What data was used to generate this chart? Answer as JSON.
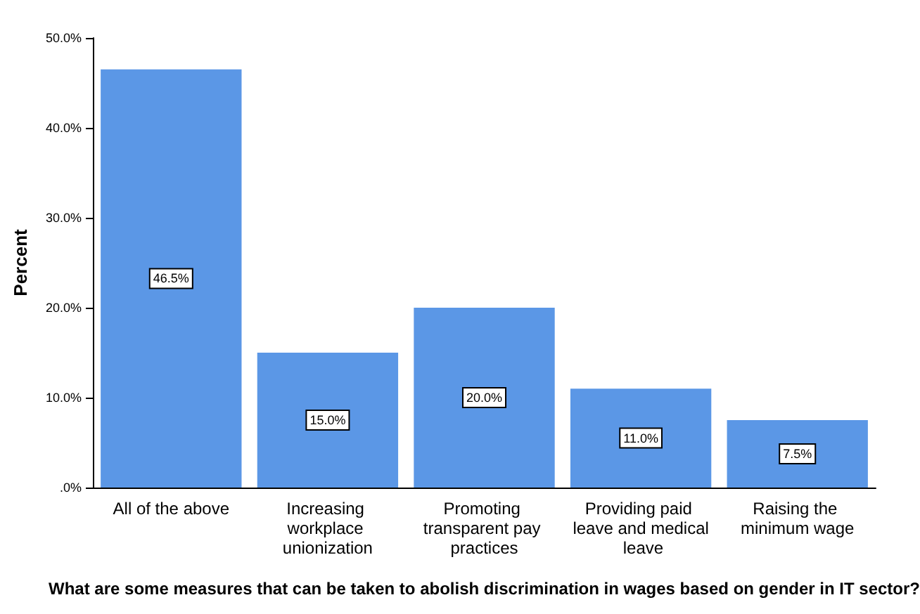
{
  "chart_data": {
    "type": "bar",
    "xlabel": "What are some measures that can be taken to abolish discrimination in wages based on gender in IT sector?",
    "ylabel": "Percent",
    "categories": [
      "All of the above",
      "Increasing workplace unionization",
      "Promoting transparent pay practices",
      "Providing paid leave and medical leave",
      "Raising the minimum wage"
    ],
    "values": [
      46.5,
      15.0,
      20.0,
      11.0,
      7.5
    ],
    "value_labels": [
      "46.5%",
      "15.0%",
      "20.0%",
      "11.0%",
      "7.5%"
    ],
    "color": "#5b97e6",
    "ylim": [
      0,
      50
    ],
    "yticks": [
      {
        "value": 0,
        "label": ".0%"
      },
      {
        "value": 10,
        "label": "10.0%"
      },
      {
        "value": 20,
        "label": "20.0%"
      },
      {
        "value": 30,
        "label": "30.0%"
      },
      {
        "value": 40,
        "label": "40.0%"
      },
      {
        "value": 50,
        "label": "50.0%"
      }
    ],
    "grid": false
  }
}
